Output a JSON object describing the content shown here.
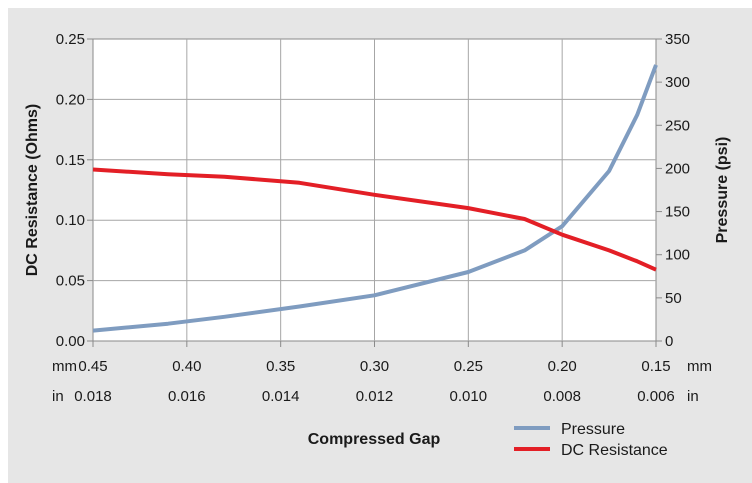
{
  "chart_data": {
    "type": "line",
    "xlabel": "Compressed Gap",
    "ylabel_left": "DC Resistance (Ohms)",
    "ylabel_right": "Pressure (psi)",
    "x_unit_mm": "mm",
    "x_unit_in": "in",
    "xlim_mm": [
      0.45,
      0.15
    ],
    "ylim_left": [
      0,
      0.25
    ],
    "ylim_right": [
      0,
      350
    ],
    "x_ticks_mm": [
      "0.45",
      "0.40",
      "0.35",
      "0.30",
      "0.25",
      "0.20",
      "0.15"
    ],
    "x_ticks_in": [
      "0.018",
      "0.016",
      "0.014",
      "0.012",
      "0.010",
      "0.008",
      "0.006"
    ],
    "y_ticks_left": [
      "0.00",
      "0.05",
      "0.10",
      "0.15",
      "0.20",
      "0.25"
    ],
    "y_ticks_right": [
      "0",
      "50",
      "100",
      "150",
      "200",
      "250",
      "300",
      "350"
    ],
    "grid": true,
    "legend_position": "bottom-right",
    "series": [
      {
        "name": "Pressure",
        "axis": "right",
        "color": "#7f9cc0",
        "points": [
          [
            0.45,
            12
          ],
          [
            0.41,
            20
          ],
          [
            0.38,
            28
          ],
          [
            0.34,
            40
          ],
          [
            0.3,
            53
          ],
          [
            0.25,
            80
          ],
          [
            0.22,
            105
          ],
          [
            0.2,
            133
          ],
          [
            0.175,
            197
          ],
          [
            0.16,
            262
          ],
          [
            0.15,
            320
          ]
        ]
      },
      {
        "name": "DC Resistance",
        "axis": "left",
        "color": "#e31f26",
        "points": [
          [
            0.45,
            0.142
          ],
          [
            0.41,
            0.138
          ],
          [
            0.38,
            0.136
          ],
          [
            0.34,
            0.131
          ],
          [
            0.3,
            0.121
          ],
          [
            0.25,
            0.11
          ],
          [
            0.22,
            0.101
          ],
          [
            0.2,
            0.088
          ],
          [
            0.175,
            0.075
          ],
          [
            0.16,
            0.066
          ],
          [
            0.15,
            0.059
          ]
        ]
      }
    ]
  }
}
